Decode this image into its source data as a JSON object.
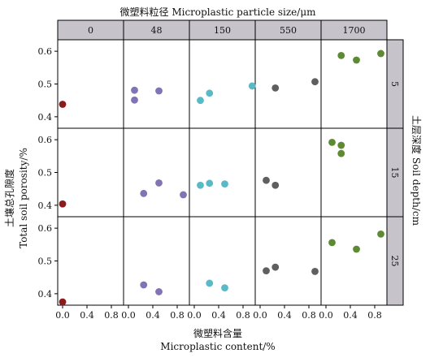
{
  "chart_data": {
    "type": "scatter",
    "title": "微塑料粒径 Microplastic particle size/μm",
    "xlabel": [
      "微塑料含量",
      "Microplastic content/%"
    ],
    "ylabel": [
      "土壤总孔隙度",
      "Total soil porosity/%"
    ],
    "right_label": "土层深度 Soil depth/cm",
    "columns": [
      "0",
      "48",
      "150",
      "550",
      "1700"
    ],
    "rows": [
      "5",
      "15",
      "25"
    ],
    "xlim": [
      -0.08,
      1.0
    ],
    "x_ticks": [
      0.0,
      0.4,
      0.8
    ],
    "x_tick_labels": [
      "0.0",
      "0.4",
      "0.8"
    ],
    "ylim": [
      0.365,
      0.635
    ],
    "y_ticks": [
      0.4,
      0.5,
      0.6
    ],
    "y_tick_labels": [
      "0.4",
      "0.5",
      "0.6"
    ],
    "grid": false,
    "colors": {
      "0": "#8b1c1c",
      "48": "#8273b4",
      "150": "#5ab9c6",
      "550": "#5f5f62",
      "1700": "#5d8a33"
    },
    "points": [
      {
        "row": "5",
        "col": "0",
        "x": 0.0,
        "y": 0.438
      },
      {
        "row": "5",
        "col": "48",
        "x": 0.1,
        "y": 0.481
      },
      {
        "row": "5",
        "col": "48",
        "x": 0.1,
        "y": 0.451
      },
      {
        "row": "5",
        "col": "48",
        "x": 0.5,
        "y": 0.479
      },
      {
        "row": "5",
        "col": "150",
        "x": 0.1,
        "y": 0.45
      },
      {
        "row": "5",
        "col": "150",
        "x": 0.25,
        "y": 0.472
      },
      {
        "row": "5",
        "col": "150",
        "x": 0.95,
        "y": 0.494
      },
      {
        "row": "5",
        "col": "550",
        "x": 0.25,
        "y": 0.488
      },
      {
        "row": "5",
        "col": "550",
        "x": 0.9,
        "y": 0.507
      },
      {
        "row": "5",
        "col": "1700",
        "x": 0.25,
        "y": 0.587
      },
      {
        "row": "5",
        "col": "1700",
        "x": 0.5,
        "y": 0.573
      },
      {
        "row": "5",
        "col": "1700",
        "x": 0.9,
        "y": 0.593
      },
      {
        "row": "15",
        "col": "0",
        "x": 0.0,
        "y": 0.404
      },
      {
        "row": "15",
        "col": "48",
        "x": 0.25,
        "y": 0.436
      },
      {
        "row": "15",
        "col": "48",
        "x": 0.5,
        "y": 0.468
      },
      {
        "row": "15",
        "col": "48",
        "x": 0.9,
        "y": 0.432
      },
      {
        "row": "15",
        "col": "150",
        "x": 0.1,
        "y": 0.461
      },
      {
        "row": "15",
        "col": "150",
        "x": 0.25,
        "y": 0.467
      },
      {
        "row": "15",
        "col": "150",
        "x": 0.5,
        "y": 0.465
      },
      {
        "row": "15",
        "col": "550",
        "x": 0.1,
        "y": 0.476
      },
      {
        "row": "15",
        "col": "550",
        "x": 0.25,
        "y": 0.461
      },
      {
        "row": "15",
        "col": "1700",
        "x": 0.1,
        "y": 0.592
      },
      {
        "row": "15",
        "col": "1700",
        "x": 0.25,
        "y": 0.583
      },
      {
        "row": "15",
        "col": "1700",
        "x": 0.25,
        "y": 0.558
      },
      {
        "row": "25",
        "col": "0",
        "x": 0.0,
        "y": 0.375
      },
      {
        "row": "25",
        "col": "48",
        "x": 0.25,
        "y": 0.427
      },
      {
        "row": "25",
        "col": "48",
        "x": 0.5,
        "y": 0.406
      },
      {
        "row": "25",
        "col": "150",
        "x": 0.25,
        "y": 0.432
      },
      {
        "row": "25",
        "col": "150",
        "x": 0.5,
        "y": 0.418
      },
      {
        "row": "25",
        "col": "550",
        "x": 0.1,
        "y": 0.47
      },
      {
        "row": "25",
        "col": "550",
        "x": 0.25,
        "y": 0.481
      },
      {
        "row": "25",
        "col": "550",
        "x": 0.9,
        "y": 0.468
      },
      {
        "row": "25",
        "col": "1700",
        "x": 0.1,
        "y": 0.556
      },
      {
        "row": "25",
        "col": "1700",
        "x": 0.5,
        "y": 0.536
      },
      {
        "row": "25",
        "col": "1700",
        "x": 0.9,
        "y": 0.582
      }
    ]
  }
}
